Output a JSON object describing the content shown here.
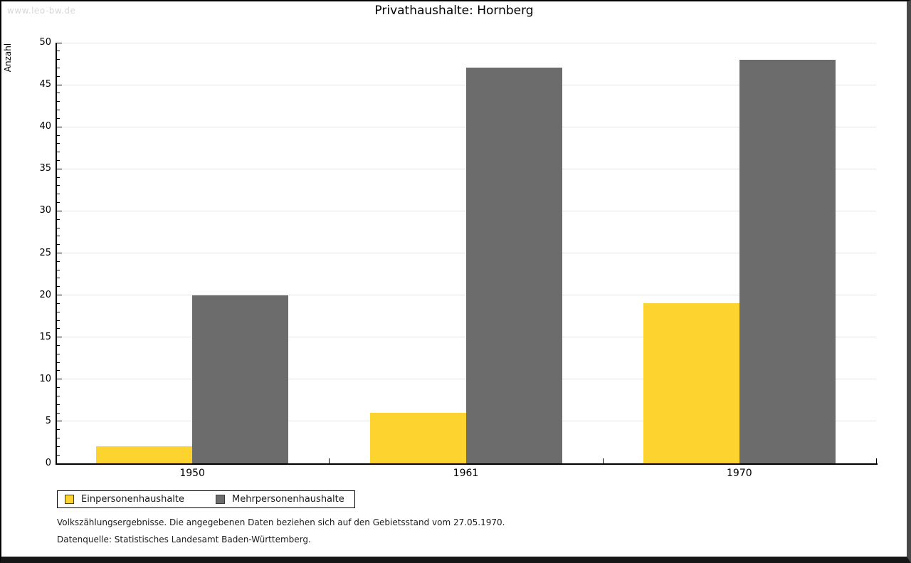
{
  "watermark": "www.leo-bw.de",
  "title": "Privathaushalte: Hornberg",
  "chart_data": {
    "type": "bar",
    "title": "Privathaushalte: Hornberg",
    "categories": [
      "1950",
      "1961",
      "1970"
    ],
    "series": [
      {
        "name": "Einpersonenhaushalte",
        "values": [
          2,
          6,
          19
        ],
        "color": "#FCD32F"
      },
      {
        "name": "Mehrpersonenhaushalte",
        "values": [
          20,
          47,
          48
        ],
        "color": "#6C6C6C"
      }
    ],
    "xlabel": "",
    "ylabel": "Anzahl",
    "ylim": [
      0,
      50
    ],
    "y_major_step": 5,
    "y_minor_step": 1,
    "grid": "horizontal-major-lightgray",
    "legend_position": "bottom-left-boxed",
    "bar_borders": false
  },
  "footnotes": [
    "Volkszählungsergebnisse. Die angegebenen Daten beziehen sich auf den Gebietsstand vom 27.05.1970.",
    "Datenquelle: Statistisches Landesamt Baden-Württemberg."
  ],
  "colors": {
    "series1": "#FCD32F",
    "series2": "#6C6C6C",
    "gridline": "#e4e4e4",
    "axis": "#000000",
    "watermark": "#d8d8d8",
    "frame_right": "#484848",
    "frame_bottom": "#161616"
  }
}
